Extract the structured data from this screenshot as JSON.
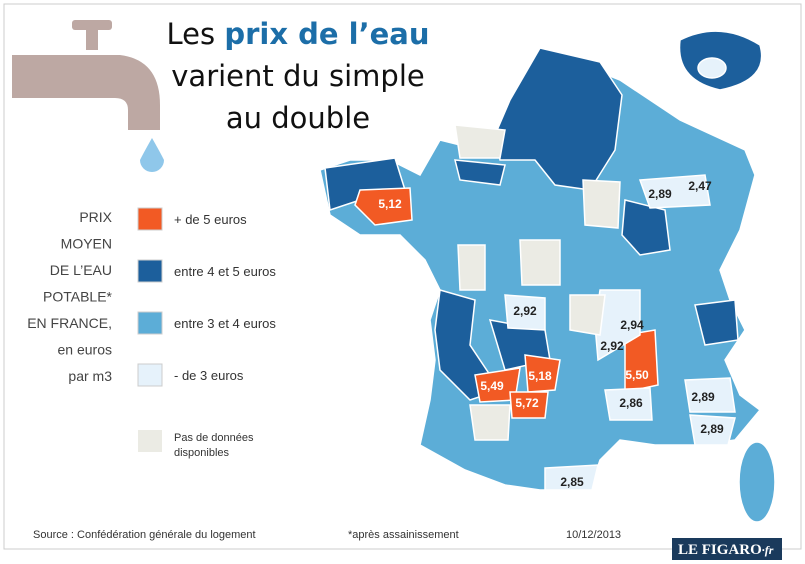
{
  "title": {
    "lead": "Les",
    "highlight": "prix de l’eau",
    "line2": "varient du simple",
    "line3": "au double"
  },
  "legend": {
    "title_lines": [
      "PRIX",
      "MOYEN",
      "DE L’EAU",
      "POTABLE*",
      "EN FRANCE,",
      "en euros",
      "par m3"
    ],
    "items": [
      {
        "label": "+  de 5 euros",
        "color": "#f25a24"
      },
      {
        "label": "entre 4 et 5 euros",
        "color": "#1c5f9c"
      },
      {
        "label": "entre 3 et 4 euros",
        "color": "#5cadd7"
      },
      {
        "label": "- de 3 euros",
        "color": "#e6f2fb"
      }
    ],
    "no_data": {
      "label_lines": [
        "Pas de données",
        "disponibles"
      ],
      "color": "#ebebe4"
    }
  },
  "map_labels": [
    "5,12",
    "2,89",
    "2,47",
    "2,92",
    "2,94",
    "2,92",
    "5,50",
    "5,18",
    "5,49",
    "5,72",
    "2,86",
    "2,89",
    "2,89",
    "2,85"
  ],
  "footer": {
    "source": "Source : Confédération générale du logement",
    "note": "*après assainissement",
    "date": "10/12/2013",
    "logo": "LE FIGARO",
    "logo_suffix": "·fr"
  }
}
